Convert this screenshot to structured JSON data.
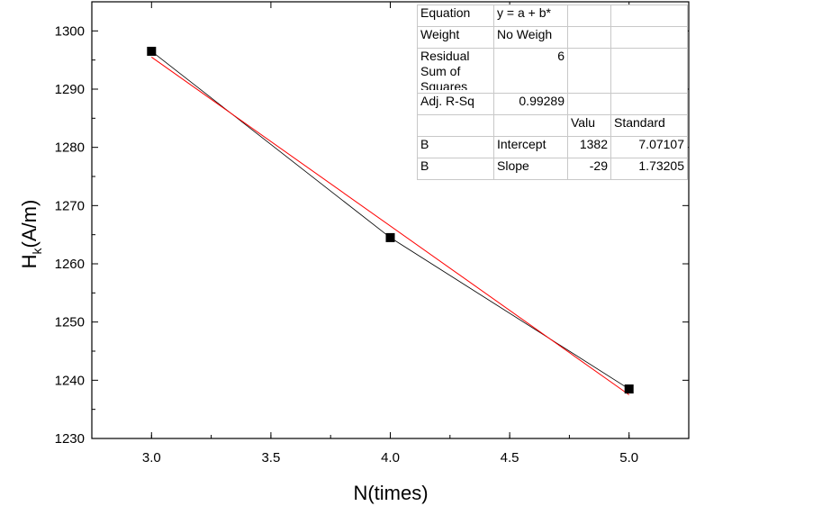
{
  "chart_data": {
    "type": "scatter",
    "xlabel": "N(times)",
    "ylabel": {
      "main": "H",
      "sub": "k",
      "unit": "(A/m)"
    },
    "xlim": [
      2.75,
      5.25
    ],
    "ylim": [
      1230,
      1305
    ],
    "x_ticks": [
      "3.0",
      "3.5",
      "4.0",
      "4.5",
      "5.0"
    ],
    "y_ticks": [
      "1230",
      "1240",
      "1250",
      "1260",
      "1270",
      "1280",
      "1290",
      "1300"
    ],
    "series": [
      {
        "x": [
          3.0,
          4.0,
          5.0
        ],
        "y": [
          1296.5,
          1264.5,
          1238.5
        ],
        "marker": "square",
        "connect": true,
        "color": "#000000"
      }
    ],
    "fit_line": {
      "x": [
        3.0,
        5.0
      ],
      "y": [
        1295.5,
        1237.5
      ],
      "color": "#ff0000"
    },
    "grid": false,
    "fit_table": {
      "rows": [
        [
          "Equation",
          "y = a + b*",
          "",
          ""
        ],
        [
          "Weight",
          "No Weigh",
          "",
          ""
        ],
        [
          "Residual Sum of Squares",
          "6",
          "",
          ""
        ],
        [
          "Adj. R-Sq",
          "0.99289",
          "",
          ""
        ],
        [
          "",
          "",
          "Valu",
          "Standard"
        ],
        [
          "B",
          "Intercept",
          "1382",
          "7.07107"
        ],
        [
          "B",
          "Slope",
          "-29",
          "1.73205"
        ]
      ]
    }
  }
}
